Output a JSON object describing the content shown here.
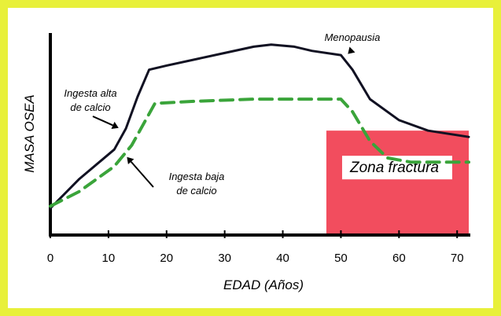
{
  "chart_data": {
    "type": "line",
    "title": "",
    "xlabel": "EDAD (Años)",
    "ylabel": "MASA OSEA",
    "xlim": [
      0,
      72
    ],
    "ylim": [
      0,
      100
    ],
    "x_ticks": [
      "0",
      "10",
      "20",
      "30",
      "40",
      "50",
      "60",
      "70"
    ],
    "grid": false,
    "series": [
      {
        "name": "Ingesta alta de calcio",
        "color": "#111122",
        "style": "solid",
        "x": [
          0,
          5,
          11,
          13,
          15,
          17,
          20,
          30,
          35,
          38,
          42,
          45,
          50,
          52,
          55,
          60,
          65,
          72
        ],
        "y": [
          12,
          26,
          40,
          50,
          65,
          78,
          80,
          86,
          89,
          90,
          89,
          87,
          85,
          78,
          64,
          54,
          49,
          46
        ]
      },
      {
        "name": "Ingesta baja de calcio",
        "color": "#3aa43a",
        "style": "dashed",
        "x": [
          0,
          5,
          11,
          14,
          18,
          25,
          35,
          45,
          50,
          52,
          55,
          58,
          62,
          68,
          72
        ],
        "y": [
          13,
          20,
          32,
          42,
          62,
          63,
          64,
          64,
          64,
          58,
          44,
          36,
          34,
          34,
          34
        ]
      }
    ],
    "zone": {
      "label": "Zona fractura",
      "x_start": 47.5,
      "x_end": 72,
      "y_top": 49,
      "color": "#f24d5e"
    },
    "annotations": [
      {
        "lines": [
          "Ingesta alta",
          "de calcio"
        ],
        "target": [
          12,
          50
        ]
      },
      {
        "lines": [
          "Ingesta baja",
          "de calcio"
        ],
        "target": [
          13,
          37
        ]
      },
      {
        "lines": [
          "Menopausia"
        ],
        "target": [
          51,
          85
        ]
      }
    ]
  }
}
